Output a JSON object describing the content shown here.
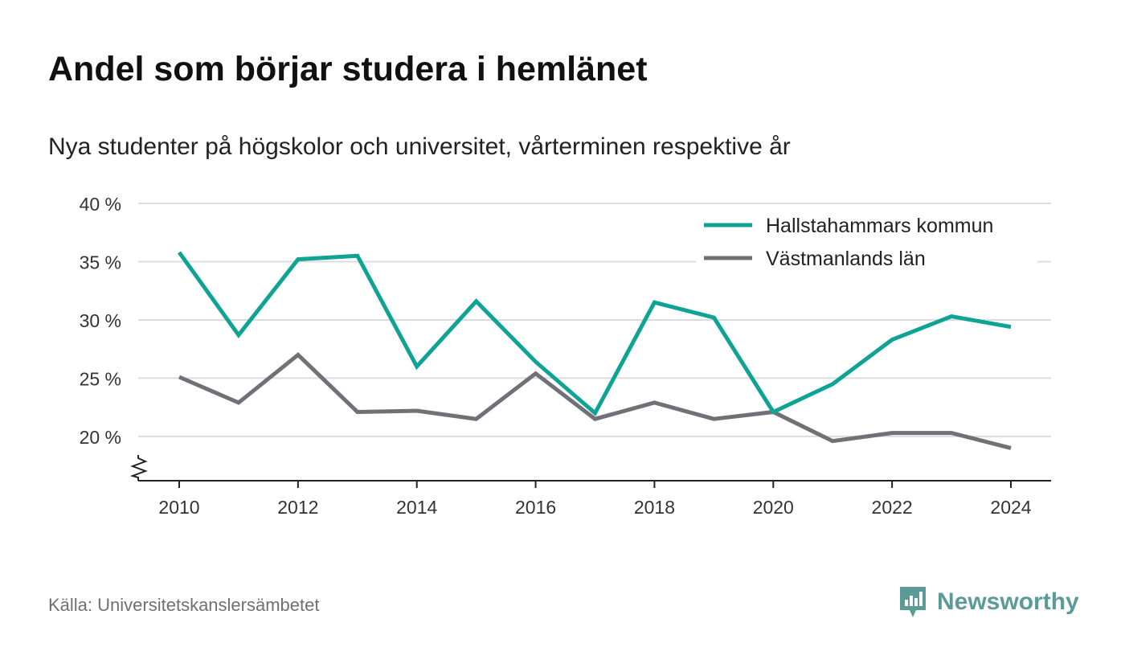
{
  "header": {
    "title": "Andel som börjar studera i hemlänet",
    "subtitle": "Nya studenter på högskolor och universitet, vårterminen respektive år"
  },
  "footer": {
    "source": "Källa: Universitetskanslersämbetet",
    "brand": "Newsworthy",
    "brand_icon": "newsworthy-logo-icon",
    "brand_color": "#5a9b98"
  },
  "chart_data": {
    "type": "line",
    "title": "Andel som börjar studera i hemlänet",
    "subtitle": "Nya studenter på högskolor och universitet, vårterminen respektive år",
    "xlabel": "",
    "ylabel": "",
    "x": [
      2010,
      2011,
      2012,
      2013,
      2014,
      2015,
      2016,
      2017,
      2018,
      2019,
      2020,
      2021,
      2022,
      2023,
      2024
    ],
    "x_ticks": [
      "2010",
      "2012",
      "2014",
      "2016",
      "2018",
      "2020",
      "2022",
      "2024"
    ],
    "y_ticks": [
      "40 %",
      "35 %",
      "30 %",
      "25 %",
      "20 %"
    ],
    "ylim": [
      16.2,
      40
    ],
    "y_axis_break": true,
    "grid": true,
    "legend_position": "top-right",
    "series": [
      {
        "name": "Hallstahammars kommun",
        "color": "#0fa396",
        "values": [
          35.8,
          28.7,
          35.2,
          35.5,
          26.0,
          31.6,
          26.4,
          22.0,
          31.5,
          30.2,
          22.1,
          24.5,
          28.3,
          30.3,
          29.4
        ]
      },
      {
        "name": "Västmanlands län",
        "color": "#707077",
        "values": [
          25.1,
          22.9,
          27.0,
          22.1,
          22.2,
          21.5,
          25.4,
          21.5,
          22.9,
          21.5,
          22.1,
          19.6,
          20.3,
          20.3,
          19.0
        ]
      }
    ]
  }
}
